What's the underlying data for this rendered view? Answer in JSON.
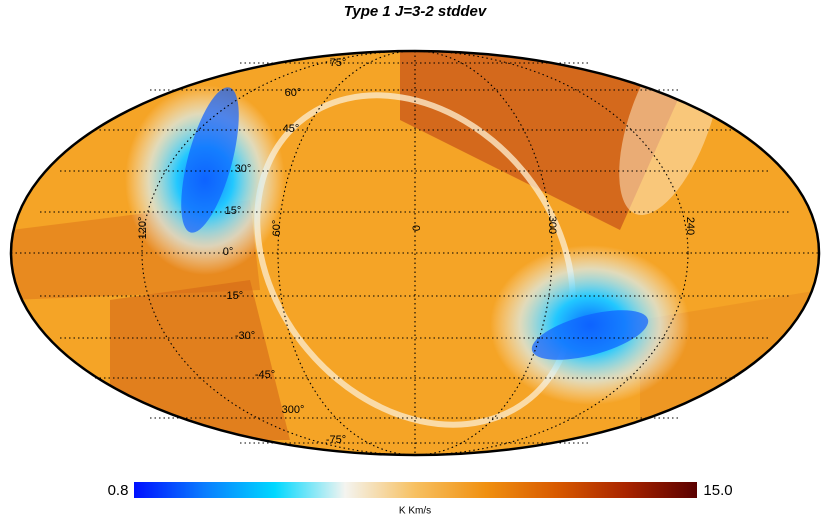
{
  "title": "Type 1 J=3-2 stddev",
  "graticule_labels": [
    "75°",
    "60°",
    "45°",
    "30°",
    "15°",
    "0°",
    "-15°",
    "-30°",
    "-45°",
    "300°",
    "-75°",
    "120°",
    "60°",
    "0",
    "300",
    "240"
  ],
  "colorbar": {
    "min": 0.8,
    "max": {
      "value": 15,
      "label": "15.0"
    },
    "unit": "K Km/s",
    "colormap": [
      "#0010ff",
      "#0a7dff",
      "#00d8ff",
      "#f4f4f0",
      "#f7c060",
      "#f09010",
      "#d85a00",
      "#a82400",
      "#5a0000"
    ]
  }
}
